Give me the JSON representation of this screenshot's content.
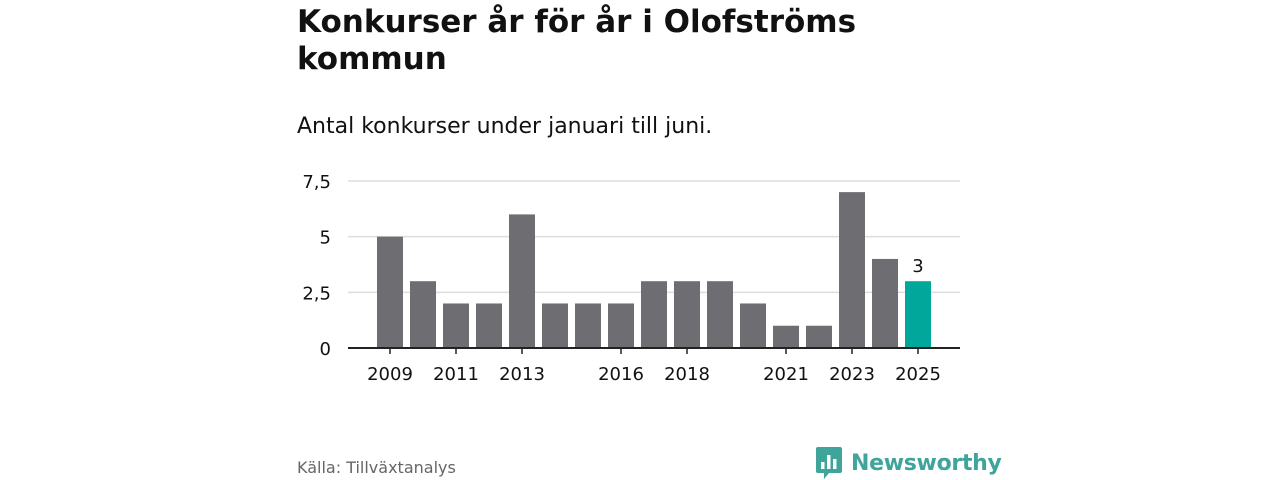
{
  "header": {
    "title": "Konkurser år för år i Olofströms kommun",
    "subtitle": "Antal konkurser under januari till juni."
  },
  "footer": {
    "source": "Källa: Tillväxtanalys",
    "brand": "Newsworthy",
    "brand_logo_icon": "newsworthy-logo-icon"
  },
  "colors": {
    "bar": "#6e6d72",
    "highlight": "#00a79a",
    "grid": "#dddddd",
    "axis": "#222222",
    "brand": "#3fa59a"
  },
  "chart_data": {
    "type": "bar",
    "categories": [
      "2009",
      "2010",
      "2011",
      "2012",
      "2013",
      "2014",
      "2015",
      "2016",
      "2017",
      "2018",
      "2019",
      "2020",
      "2021",
      "2022",
      "2023",
      "2024",
      "2025"
    ],
    "values": [
      5,
      3,
      2,
      2,
      6,
      2,
      2,
      2,
      3,
      3,
      3,
      2,
      1,
      1,
      7,
      4,
      3
    ],
    "x_tick_labels": [
      "2009",
      "2011",
      "2013",
      "2016",
      "2018",
      "2021",
      "2023",
      "2025"
    ],
    "y_ticks": [
      0,
      2.5,
      5,
      7.5
    ],
    "y_tick_labels": [
      "0",
      "2,5",
      "5",
      "7,5"
    ],
    "ylim": [
      0,
      7.5
    ],
    "highlight_category": "2025",
    "data_labels": [
      {
        "category": "2025",
        "text": "3"
      }
    ],
    "grid": true,
    "xlabel": "",
    "ylabel": ""
  }
}
